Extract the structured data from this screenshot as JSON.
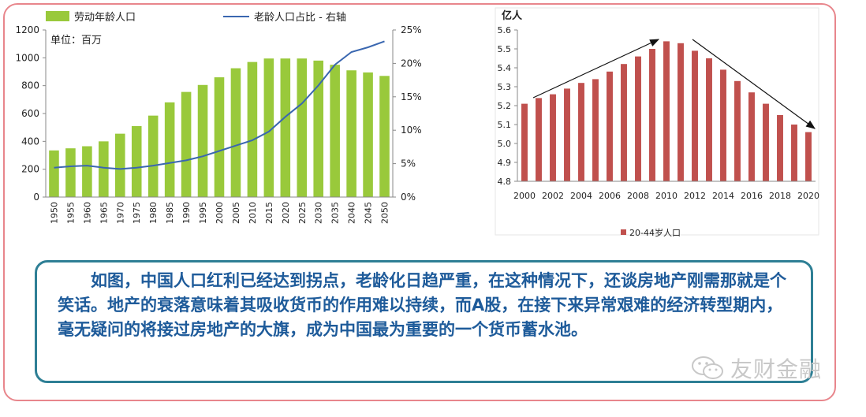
{
  "watermark": {
    "text": "友财金融",
    "icon": "wechat-icon"
  },
  "paragraph": "如图，中国人口红利已经达到拐点，老龄化日趋严重，在这种情况下，还谈房地产刚需那就是个笑话。地产的衰落意味着其吸收货币的作用难以持续，而A股，在接下来异常艰难的经济转型期内，毫无疑问的将接过房地产的大旗，成为中国最为重要的一个货币蓄水池。",
  "colors": {
    "frame": "#e8868c",
    "textbox_border": "#2e7f95",
    "paragraph_text": "#1e5b9a",
    "bar_green": "#99c93b",
    "line_blue": "#3a67b0",
    "bar_red": "#c0504d"
  },
  "chart_data": [
    {
      "type": "bar",
      "unit_note": "单位：百万",
      "categories": [
        "1950",
        "1955",
        "1960",
        "1965",
        "1970",
        "1975",
        "1980",
        "1985",
        "1990",
        "1995",
        "2000",
        "2005",
        "2010",
        "2015",
        "2020",
        "2025",
        "2030",
        "2035",
        "2040",
        "2045",
        "2050"
      ],
      "ylim": [
        0,
        1200
      ],
      "yticks": [
        "0",
        "200",
        "400",
        "600",
        "800",
        "1000",
        "1200"
      ],
      "y2lim": [
        0,
        25
      ],
      "y2ticks": [
        "0%",
        "5%",
        "10%",
        "15%",
        "20%",
        "25%"
      ],
      "legend_position": "top",
      "grid": false,
      "series": [
        {
          "name": "劳动年龄人口",
          "kind": "bar",
          "color": "#99c93b",
          "axis": "left",
          "values": [
            335,
            350,
            365,
            400,
            455,
            510,
            585,
            680,
            755,
            805,
            860,
            925,
            970,
            995,
            995,
            995,
            980,
            950,
            910,
            895,
            870
          ]
        },
        {
          "name": "老龄人口占比 - 右轴",
          "kind": "line",
          "color": "#3a67b0",
          "axis": "right",
          "x": [
            1950,
            1955,
            1960,
            1965,
            1970,
            1975,
            1980,
            1985,
            1990,
            1995,
            2000,
            2005,
            2010,
            2015,
            2020,
            2025,
            2030,
            2035,
            2040,
            2045,
            2050
          ],
          "values": [
            4.4,
            4.6,
            4.7,
            4.4,
            4.2,
            4.4,
            4.7,
            5.1,
            5.5,
            6.1,
            6.9,
            7.7,
            8.5,
            9.8,
            12.0,
            14.0,
            16.7,
            19.8,
            21.7,
            22.4,
            23.3
          ]
        }
      ]
    },
    {
      "type": "bar",
      "unit_label": "亿人",
      "categories": [
        "2000",
        "2001",
        "2002",
        "2003",
        "2004",
        "2005",
        "2006",
        "2007",
        "2008",
        "2009",
        "2010",
        "2011",
        "2012",
        "2013",
        "2014",
        "2015",
        "2016",
        "2017",
        "2018",
        "2019",
        "2020"
      ],
      "xtick_labels": [
        "2000",
        "2002",
        "2004",
        "2006",
        "2008",
        "2010",
        "2012",
        "2014",
        "2016",
        "2018",
        "2020"
      ],
      "ylim": [
        4.8,
        5.6
      ],
      "yticks": [
        "4.8",
        "4.9",
        "5.0",
        "5.1",
        "5.2",
        "5.3",
        "5.4",
        "5.5",
        "5.6"
      ],
      "legend_position": "bottom",
      "grid": false,
      "series": [
        {
          "name": "20-44岁人口",
          "color": "#c0504d",
          "values": [
            5.21,
            5.24,
            5.26,
            5.29,
            5.32,
            5.34,
            5.38,
            5.42,
            5.46,
            5.5,
            5.54,
            5.53,
            5.49,
            5.45,
            5.39,
            5.33,
            5.27,
            5.21,
            5.15,
            5.1,
            5.06
          ]
        }
      ]
    }
  ]
}
